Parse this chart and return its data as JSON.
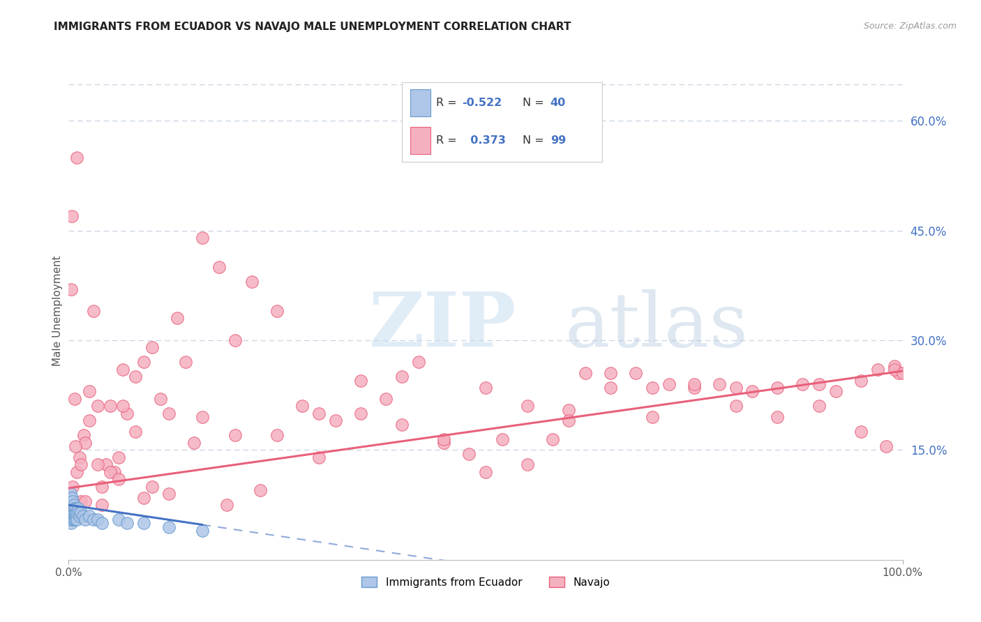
{
  "title": "IMMIGRANTS FROM ECUADOR VS NAVAJO MALE UNEMPLOYMENT CORRELATION CHART",
  "source": "Source: ZipAtlas.com",
  "ylabel": "Male Unemployment",
  "right_ytick_labels": [
    "15.0%",
    "30.0%",
    "45.0%",
    "60.0%"
  ],
  "right_ytick_values": [
    0.15,
    0.3,
    0.45,
    0.6
  ],
  "xlim": [
    0.0,
    1.0
  ],
  "ylim": [
    0.0,
    0.68
  ],
  "ecuador_color": "#aec6e8",
  "ecuador_edge": "#6699cc",
  "navajo_color": "#f5b0c0",
  "navajo_edge": "#e8607a",
  "legend_ecuador_r": "-0.522",
  "legend_ecuador_n": "40",
  "legend_navajo_r": "0.373",
  "legend_navajo_n": "99",
  "blue_line_color": "#4472c4",
  "pink_line_color": "#e8607a",
  "grid_color": "#c8d4e4",
  "background_color": "#ffffff",
  "ecuador_points_x": [
    0.001,
    0.001,
    0.002,
    0.002,
    0.002,
    0.003,
    0.003,
    0.003,
    0.004,
    0.004,
    0.004,
    0.005,
    0.005,
    0.005,
    0.006,
    0.006,
    0.006,
    0.007,
    0.007,
    0.008,
    0.008,
    0.009,
    0.009,
    0.01,
    0.01,
    0.011,
    0.012,
    0.013,
    0.015,
    0.017,
    0.02,
    0.025,
    0.03,
    0.035,
    0.04,
    0.06,
    0.07,
    0.09,
    0.12,
    0.16
  ],
  "ecuador_points_y": [
    0.055,
    0.07,
    0.06,
    0.08,
    0.09,
    0.05,
    0.065,
    0.075,
    0.055,
    0.07,
    0.085,
    0.06,
    0.07,
    0.08,
    0.055,
    0.065,
    0.075,
    0.06,
    0.07,
    0.055,
    0.065,
    0.06,
    0.07,
    0.055,
    0.065,
    0.07,
    0.065,
    0.06,
    0.065,
    0.06,
    0.055,
    0.06,
    0.055,
    0.055,
    0.05,
    0.055,
    0.05,
    0.05,
    0.045,
    0.04
  ],
  "navajo_points_x": [
    0.003,
    0.005,
    0.007,
    0.01,
    0.013,
    0.015,
    0.018,
    0.02,
    0.025,
    0.03,
    0.035,
    0.04,
    0.045,
    0.05,
    0.055,
    0.06,
    0.065,
    0.07,
    0.08,
    0.09,
    0.1,
    0.11,
    0.12,
    0.14,
    0.16,
    0.18,
    0.2,
    0.22,
    0.25,
    0.28,
    0.3,
    0.32,
    0.35,
    0.38,
    0.4,
    0.42,
    0.45,
    0.48,
    0.5,
    0.52,
    0.55,
    0.58,
    0.6,
    0.62,
    0.65,
    0.68,
    0.7,
    0.72,
    0.75,
    0.78,
    0.8,
    0.82,
    0.85,
    0.88,
    0.9,
    0.92,
    0.95,
    0.97,
    0.99,
    0.995,
    0.004,
    0.008,
    0.015,
    0.025,
    0.035,
    0.05,
    0.065,
    0.08,
    0.1,
    0.13,
    0.16,
    0.2,
    0.25,
    0.3,
    0.35,
    0.4,
    0.45,
    0.5,
    0.55,
    0.6,
    0.65,
    0.7,
    0.75,
    0.8,
    0.85,
    0.9,
    0.95,
    0.98,
    0.99,
    1.0,
    0.01,
    0.02,
    0.04,
    0.06,
    0.09,
    0.12,
    0.15,
    0.19,
    0.23
  ],
  "navajo_points_y": [
    0.37,
    0.1,
    0.22,
    0.12,
    0.14,
    0.08,
    0.17,
    0.16,
    0.23,
    0.34,
    0.21,
    0.1,
    0.13,
    0.21,
    0.12,
    0.14,
    0.26,
    0.2,
    0.25,
    0.27,
    0.1,
    0.22,
    0.2,
    0.27,
    0.44,
    0.4,
    0.3,
    0.38,
    0.17,
    0.21,
    0.2,
    0.19,
    0.2,
    0.22,
    0.25,
    0.27,
    0.16,
    0.145,
    0.12,
    0.165,
    0.21,
    0.165,
    0.205,
    0.255,
    0.255,
    0.255,
    0.235,
    0.24,
    0.235,
    0.24,
    0.235,
    0.23,
    0.235,
    0.24,
    0.24,
    0.23,
    0.245,
    0.26,
    0.265,
    0.255,
    0.47,
    0.155,
    0.13,
    0.19,
    0.13,
    0.12,
    0.21,
    0.175,
    0.29,
    0.33,
    0.195,
    0.17,
    0.34,
    0.14,
    0.245,
    0.185,
    0.165,
    0.235,
    0.13,
    0.19,
    0.235,
    0.195,
    0.24,
    0.21,
    0.195,
    0.21,
    0.175,
    0.155,
    0.26,
    0.255,
    0.55,
    0.08,
    0.075,
    0.11,
    0.085,
    0.09,
    0.16,
    0.075,
    0.095
  ],
  "pink_line_x0": 0.0,
  "pink_line_y0": 0.098,
  "pink_line_x1": 1.0,
  "pink_line_y1": 0.258,
  "blue_line_x0": 0.0,
  "blue_line_y0": 0.075,
  "blue_line_x1": 0.16,
  "blue_line_y1": 0.048
}
